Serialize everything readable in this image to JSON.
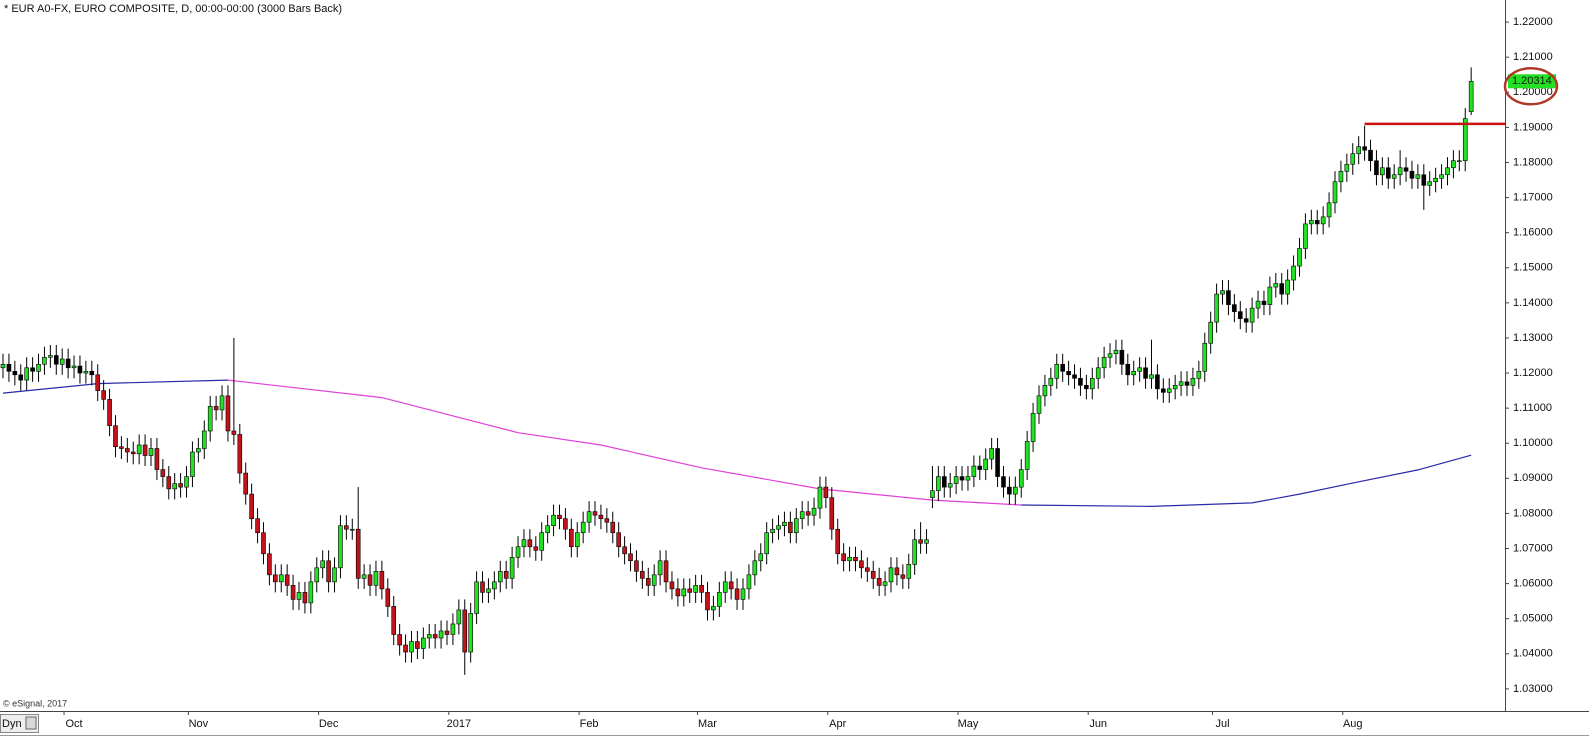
{
  "chart_data": {
    "type": "candlestick",
    "title": "* EUR A0-FX, EURO COMPOSITE, D, 00:00-00:00 (3000 Bars Back)",
    "copyright": "© eSignal, 2017",
    "controls_label": "Dyn",
    "up_color": "#22e022",
    "down_color": "#c0141a",
    "neutral_color": "#000000",
    "ylim": [
      1.0237,
      1.2263
    ],
    "yticks": [
      {
        "value": 1.22,
        "label": "1.22000"
      },
      {
        "value": 1.21,
        "label": "1.21000"
      },
      {
        "value": 1.2,
        "label": "1.20000"
      },
      {
        "value": 1.19,
        "label": "1.19000"
      },
      {
        "value": 1.18,
        "label": "1.18000"
      },
      {
        "value": 1.17,
        "label": "1.17000"
      },
      {
        "value": 1.16,
        "label": "1.16000"
      },
      {
        "value": 1.15,
        "label": "1.15000"
      },
      {
        "value": 1.14,
        "label": "1.14000"
      },
      {
        "value": 1.13,
        "label": "1.13000"
      },
      {
        "value": 1.12,
        "label": "1.12000"
      },
      {
        "value": 1.11,
        "label": "1.11000"
      },
      {
        "value": 1.1,
        "label": "1.10000"
      },
      {
        "value": 1.09,
        "label": "1.09000"
      },
      {
        "value": 1.08,
        "label": "1.08000"
      },
      {
        "value": 1.07,
        "label": "1.07000"
      },
      {
        "value": 1.06,
        "label": "1.06000"
      },
      {
        "value": 1.05,
        "label": "1.05000"
      },
      {
        "value": 1.04,
        "label": "1.04000"
      },
      {
        "value": 1.03,
        "label": "1.03000"
      }
    ],
    "last_price": {
      "value": 1.20314,
      "label": "1.20314",
      "color": "#22e022"
    },
    "hline": {
      "value": 1.191,
      "color": "#cc1111",
      "from": 230
    },
    "categories": [
      null,
      null,
      null,
      null,
      null,
      null,
      null,
      null,
      null,
      null,
      null,
      null,
      "Oct",
      null,
      null,
      null,
      null,
      null,
      null,
      null,
      null,
      null,
      null,
      null,
      null,
      null,
      null,
      null,
      null,
      null,
      null,
      null,
      null,
      "Nov",
      null,
      null,
      null,
      null,
      null,
      null,
      null,
      null,
      null,
      null,
      null,
      null,
      null,
      null,
      null,
      null,
      null,
      null,
      null,
      null,
      null,
      "Dec",
      null,
      null,
      null,
      null,
      null,
      null,
      null,
      null,
      null,
      null,
      null,
      null,
      null,
      null,
      null,
      null,
      null,
      null,
      null,
      null,
      null,
      "2017",
      null,
      null,
      null,
      null,
      null,
      null,
      null,
      null,
      null,
      null,
      null,
      null,
      null,
      null,
      null,
      null,
      null,
      null,
      null,
      null,
      null,
      "Feb",
      null,
      null,
      null,
      null,
      null,
      null,
      null,
      null,
      null,
      null,
      null,
      null,
      null,
      null,
      null,
      null,
      null,
      null,
      null,
      "Mar",
      null,
      null,
      null,
      null,
      null,
      null,
      null,
      null,
      null,
      null,
      null,
      null,
      null,
      null,
      null,
      null,
      null,
      null,
      null,
      null,
      null,
      "Apr",
      null,
      null,
      null,
      null,
      null,
      null,
      null,
      null,
      null,
      null,
      null,
      null,
      null,
      null,
      null,
      null,
      null,
      null,
      null,
      null,
      null,
      "May",
      null,
      null,
      null,
      null,
      null,
      null,
      null,
      null,
      null,
      null,
      null,
      null,
      null,
      null,
      null,
      null,
      null,
      null,
      null,
      null,
      null,
      "Jun",
      null,
      null,
      null,
      null,
      null,
      null,
      null,
      null,
      null,
      null,
      null,
      null,
      null,
      null,
      null,
      null,
      null,
      null,
      null,
      null,
      "Jul",
      null,
      null,
      null,
      null,
      null,
      null,
      null,
      null,
      null,
      null,
      null,
      null,
      null,
      null,
      null,
      null,
      null,
      null,
      null,
      null,
      null,
      "Aug",
      null,
      null,
      null,
      null,
      null,
      null,
      null,
      null,
      null,
      null,
      null,
      null,
      null,
      null,
      null,
      null,
      null,
      null,
      null,
      null
    ],
    "open": [
      1.1215,
      1.1225,
      1.1205,
      1.1195,
      1.118,
      1.1215,
      1.1205,
      1.1225,
      1.1245,
      1.125,
      1.1225,
      1.124,
      1.1215,
      1.122,
      1.12,
      1.1205,
      1.1195,
      1.115,
      1.1125,
      1.105,
      1.099,
      1.0985,
      1.0975,
      1.097,
      1.0995,
      1.0965,
      1.0985,
      1.0925,
      1.0905,
      1.087,
      1.0885,
      1.0875,
      1.0905,
      1.0975,
      1.0985,
      1.1035,
      1.1105,
      1.1095,
      1.1135,
      1.1035,
      1.1025,
      1.0915,
      1.0855,
      1.0785,
      1.0745,
      1.0685,
      1.0625,
      1.0605,
      1.0625,
      1.0595,
      1.0555,
      1.0575,
      1.0545,
      1.0605,
      1.0645,
      1.0665,
      1.0605,
      1.0645,
      1.0765,
      1.0755,
      1.0755,
      1.0615,
      1.0625,
      1.0595,
      1.0635,
      1.0585,
      1.0535,
      1.0455,
      1.0425,
      1.0405,
      1.0435,
      1.0415,
      1.0445,
      1.0455,
      1.0445,
      1.0465,
      1.0455,
      1.0485,
      1.0525,
      1.0405,
      1.0515,
      1.0605,
      1.0575,
      1.0585,
      1.0605,
      1.0635,
      1.0615,
      1.0675,
      1.0705,
      1.0725,
      1.0705,
      1.0695,
      1.0745,
      1.0765,
      1.0795,
      1.0785,
      1.0755,
      1.0705,
      1.0745,
      1.0775,
      1.0805,
      1.0795,
      1.0785,
      1.0775,
      1.0745,
      1.0705,
      1.0685,
      1.0665,
      1.0635,
      1.0615,
      1.0595,
      1.0625,
      1.0665,
      1.0605,
      1.0585,
      1.0565,
      1.0585,
      1.0575,
      1.0595,
      1.0575,
      1.0525,
      1.0535,
      1.0575,
      1.0605,
      1.0585,
      1.0555,
      1.0585,
      1.0625,
      1.0665,
      1.0685,
      1.0745,
      1.0755,
      1.0765,
      1.0775,
      1.0745,
      1.0785,
      1.0805,
      1.0795,
      1.0815,
      1.0875,
      1.0845,
      1.0755,
      1.0685,
      1.0665,
      1.0675,
      1.0665,
      1.0645,
      1.0635,
      1.0615,
      1.0595,
      1.0605,
      1.0645,
      1.0625,
      1.0615,
      1.0655,
      1.0725,
      1.0715,
      1.0845,
      1.0865,
      1.0905,
      1.0875,
      1.0885,
      1.0905,
      1.0895,
      1.0905,
      1.0935,
      1.0925,
      1.0955,
      1.0985,
      1.0905,
      1.0875,
      1.0855,
      1.0875,
      1.0925,
      1.1005,
      1.1085,
      1.1135,
      1.1165,
      1.1185,
      1.1225,
      1.1205,
      1.1195,
      1.1185,
      1.1165,
      1.1155,
      1.1185,
      1.1215,
      1.1245,
      1.1255,
      1.1265,
      1.1225,
      1.1195,
      1.1205,
      1.1215,
      1.1185,
      1.1195,
      1.1155,
      1.1145,
      1.1155,
      1.1165,
      1.1175,
      1.1165,
      1.1185,
      1.1205,
      1.1285,
      1.1345,
      1.1425,
      1.1435,
      1.1395,
      1.1375,
      1.1355,
      1.1345,
      1.1385,
      1.1405,
      1.1395,
      1.1445,
      1.1455,
      1.1425,
      1.1465,
      1.1505,
      1.1555,
      1.1625,
      1.1635,
      1.1625,
      1.1645,
      1.1685,
      1.1745,
      1.1775,
      1.1795,
      1.1825,
      1.1845,
      1.1835,
      1.1805,
      1.1765,
      1.1785,
      1.1755,
      1.1765,
      1.1785,
      1.1775,
      1.1755,
      1.1765,
      1.1735,
      1.1745,
      1.1755,
      1.1765,
      1.1785,
      1.1805,
      1.1805,
      1.1945
    ],
    "high": [
      1.1255,
      1.1255,
      1.1235,
      1.1225,
      1.1245,
      1.1245,
      1.1255,
      1.1275,
      1.128,
      1.128,
      1.127,
      1.127,
      1.125,
      1.125,
      1.1235,
      1.1235,
      1.1225,
      1.118,
      1.1155,
      1.108,
      1.102,
      1.1015,
      1.1005,
      1.1025,
      1.1025,
      1.1015,
      1.1015,
      1.0955,
      1.0935,
      1.0915,
      1.0915,
      1.0935,
      1.1005,
      1.1015,
      1.1065,
      1.1135,
      1.1135,
      1.1165,
      1.1165,
      1.13,
      1.1055,
      1.0945,
      1.0885,
      1.0815,
      1.0775,
      1.0715,
      1.0655,
      1.0655,
      1.0655,
      1.0625,
      1.0605,
      1.0605,
      1.0635,
      1.0675,
      1.0695,
      1.0695,
      1.0675,
      1.0795,
      1.0795,
      1.0785,
      1.0875,
      1.0655,
      1.0655,
      1.0665,
      1.0665,
      1.0615,
      1.0565,
      1.0485,
      1.0455,
      1.0465,
      1.0465,
      1.0475,
      1.0485,
      1.0485,
      1.0495,
      1.0495,
      1.0515,
      1.0555,
      1.0555,
      1.0545,
      1.0635,
      1.0635,
      1.0615,
      1.0635,
      1.0665,
      1.0665,
      1.0705,
      1.0735,
      1.0755,
      1.0755,
      1.0735,
      1.0775,
      1.0795,
      1.0825,
      1.0825,
      1.0815,
      1.0785,
      1.0775,
      1.0805,
      1.0835,
      1.0835,
      1.0825,
      1.0815,
      1.0805,
      1.0775,
      1.0735,
      1.0715,
      1.0695,
      1.0665,
      1.0645,
      1.0655,
      1.0695,
      1.0695,
      1.0635,
      1.0615,
      1.0615,
      1.0615,
      1.0625,
      1.0625,
      1.0605,
      1.0565,
      1.0605,
      1.0635,
      1.0635,
      1.0615,
      1.0615,
      1.0655,
      1.0695,
      1.0715,
      1.0775,
      1.0785,
      1.0795,
      1.0805,
      1.0805,
      1.0815,
      1.0835,
      1.0835,
      1.0845,
      1.0905,
      1.0905,
      1.0875,
      1.0785,
      1.0715,
      1.0705,
      1.0705,
      1.0695,
      1.0675,
      1.0665,
      1.0645,
      1.0635,
      1.0675,
      1.0675,
      1.0655,
      1.0685,
      1.0755,
      1.0775,
      1.0755,
      1.0935,
      1.0935,
      1.0935,
      1.0915,
      1.0935,
      1.0935,
      1.0935,
      1.0965,
      1.0965,
      1.0985,
      1.1015,
      1.1015,
      1.0935,
      1.0905,
      1.0905,
      1.0955,
      1.1035,
      1.1115,
      1.1165,
      1.1195,
      1.1215,
      1.1255,
      1.1255,
      1.1235,
      1.1225,
      1.1215,
      1.1195,
      1.1215,
      1.1245,
      1.1275,
      1.1285,
      1.1295,
      1.1295,
      1.1255,
      1.1235,
      1.1245,
      1.1245,
      1.1295,
      1.1225,
      1.1185,
      1.1185,
      1.1195,
      1.1205,
      1.1205,
      1.1215,
      1.1235,
      1.1315,
      1.1375,
      1.1455,
      1.1465,
      1.1465,
      1.1425,
      1.1405,
      1.1385,
      1.1415,
      1.1435,
      1.1435,
      1.1475,
      1.1485,
      1.1485,
      1.1495,
      1.1535,
      1.1585,
      1.1655,
      1.1665,
      1.1665,
      1.1675,
      1.1715,
      1.1775,
      1.1805,
      1.1825,
      1.1855,
      1.1875,
      1.1905,
      1.1865,
      1.1835,
      1.1815,
      1.1815,
      1.1795,
      1.1835,
      1.1815,
      1.1805,
      1.1795,
      1.1795,
      1.1775,
      1.1785,
      1.1795,
      1.1815,
      1.1835,
      1.1835,
      1.1955,
      1.2071
    ],
    "low": [
      1.1185,
      1.1175,
      1.1165,
      1.115,
      1.115,
      1.1175,
      1.1175,
      1.1195,
      1.1215,
      1.1195,
      1.1195,
      1.1185,
      1.1185,
      1.117,
      1.117,
      1.1165,
      1.112,
      1.1095,
      1.102,
      1.096,
      1.0955,
      1.0945,
      1.094,
      1.094,
      1.0935,
      1.0935,
      1.0895,
      1.0875,
      1.084,
      1.084,
      1.0845,
      1.0845,
      1.0875,
      1.0945,
      1.0955,
      1.1005,
      1.1065,
      1.1065,
      1.1005,
      1.0995,
      1.0885,
      1.0825,
      1.0755,
      1.0715,
      1.0655,
      1.0595,
      1.0575,
      1.0575,
      1.0565,
      1.0525,
      1.0525,
      1.0515,
      1.0515,
      1.0575,
      1.0615,
      1.0575,
      1.0575,
      1.0615,
      1.0725,
      1.0725,
      1.0585,
      1.0585,
      1.0565,
      1.0565,
      1.0555,
      1.0505,
      1.0425,
      1.0395,
      1.0375,
      1.0375,
      1.0385,
      1.0385,
      1.0415,
      1.0415,
      1.0415,
      1.0425,
      1.0425,
      1.0455,
      1.034,
      1.0375,
      1.0485,
      1.0545,
      1.0545,
      1.0555,
      1.0575,
      1.0585,
      1.0585,
      1.0645,
      1.0675,
      1.0675,
      1.0665,
      1.0665,
      1.0715,
      1.0735,
      1.0755,
      1.0725,
      1.0675,
      1.0675,
      1.0715,
      1.0745,
      1.0765,
      1.0755,
      1.0745,
      1.0715,
      1.0675,
      1.0655,
      1.0635,
      1.0605,
      1.0585,
      1.0565,
      1.0565,
      1.0595,
      1.0575,
      1.0555,
      1.0535,
      1.0535,
      1.0545,
      1.0545,
      1.0545,
      1.0495,
      1.0495,
      1.0505,
      1.0545,
      1.0555,
      1.0525,
      1.0525,
      1.0555,
      1.0595,
      1.0635,
      1.0655,
      1.0715,
      1.0725,
      1.0735,
      1.0715,
      1.0715,
      1.0755,
      1.0765,
      1.0765,
      1.0785,
      1.0815,
      1.0725,
      1.0655,
      1.0635,
      1.0635,
      1.0635,
      1.0615,
      1.0605,
      1.0585,
      1.0565,
      1.0565,
      1.0575,
      1.0595,
      1.0585,
      1.0585,
      1.0625,
      1.0685,
      1.0685,
      1.0815,
      1.0835,
      1.0845,
      1.0845,
      1.0855,
      1.0865,
      1.0865,
      1.0875,
      1.0895,
      1.0895,
      1.0925,
      1.0875,
      1.0845,
      1.0825,
      1.0825,
      1.0845,
      1.0895,
      1.0975,
      1.1055,
      1.1105,
      1.1135,
      1.1155,
      1.1175,
      1.1165,
      1.1155,
      1.1135,
      1.1125,
      1.1125,
      1.1155,
      1.1185,
      1.1215,
      1.1225,
      1.1195,
      1.1165,
      1.1165,
      1.1175,
      1.1155,
      1.1155,
      1.1125,
      1.1115,
      1.1115,
      1.1125,
      1.1135,
      1.1135,
      1.1135,
      1.1155,
      1.1175,
      1.1255,
      1.1315,
      1.1395,
      1.1365,
      1.1345,
      1.1325,
      1.1315,
      1.1315,
      1.1355,
      1.1365,
      1.1365,
      1.1415,
      1.1395,
      1.1395,
      1.1435,
      1.1475,
      1.1525,
      1.1595,
      1.1595,
      1.1595,
      1.1615,
      1.1655,
      1.1715,
      1.1745,
      1.1765,
      1.1795,
      1.1805,
      1.1775,
      1.1735,
      1.1735,
      1.1725,
      1.1725,
      1.1735,
      1.1745,
      1.1725,
      1.1725,
      1.1665,
      1.1705,
      1.1715,
      1.1725,
      1.1735,
      1.1755,
      1.1775,
      1.1775,
      1.1935
    ],
    "close": [
      1.1225,
      1.1205,
      1.1195,
      1.118,
      1.1215,
      1.1205,
      1.1225,
      1.1245,
      1.125,
      1.1225,
      1.124,
      1.1215,
      1.122,
      1.12,
      1.1205,
      1.1195,
      1.115,
      1.1125,
      1.105,
      1.099,
      1.0985,
      1.0975,
      1.097,
      1.0995,
      1.0965,
      1.0985,
      1.0925,
      1.0905,
      1.087,
      1.0885,
      1.0875,
      1.0905,
      1.0975,
      1.0985,
      1.1035,
      1.1105,
      1.1095,
      1.1135,
      1.1035,
      1.1025,
      1.0915,
      1.0855,
      1.0785,
      1.0745,
      1.0685,
      1.0625,
      1.0605,
      1.0625,
      1.0595,
      1.0555,
      1.0575,
      1.0545,
      1.0605,
      1.0645,
      1.0665,
      1.0605,
      1.0645,
      1.0765,
      1.0755,
      1.0755,
      1.0615,
      1.0625,
      1.0595,
      1.0635,
      1.0585,
      1.0535,
      1.0455,
      1.0425,
      1.0405,
      1.0435,
      1.0415,
      1.0445,
      1.0455,
      1.0445,
      1.0465,
      1.0455,
      1.0485,
      1.0525,
      1.0405,
      1.0515,
      1.0605,
      1.0575,
      1.0585,
      1.0605,
      1.0635,
      1.0615,
      1.0675,
      1.0705,
      1.0725,
      1.0705,
      1.0695,
      1.0745,
      1.0765,
      1.0795,
      1.0785,
      1.0755,
      1.0705,
      1.0745,
      1.0775,
      1.0805,
      1.0795,
      1.0785,
      1.0775,
      1.0745,
      1.0705,
      1.0685,
      1.0665,
      1.0635,
      1.0615,
      1.0595,
      1.0625,
      1.0665,
      1.0605,
      1.0585,
      1.0565,
      1.0585,
      1.0575,
      1.0595,
      1.0575,
      1.0525,
      1.0535,
      1.0575,
      1.0605,
      1.0585,
      1.0555,
      1.0585,
      1.0625,
      1.0665,
      1.0685,
      1.0745,
      1.0755,
      1.0765,
      1.0775,
      1.0745,
      1.0785,
      1.0805,
      1.0795,
      1.0815,
      1.0875,
      1.0845,
      1.0755,
      1.0685,
      1.0665,
      1.0675,
      1.0665,
      1.0645,
      1.0635,
      1.0615,
      1.0595,
      1.0605,
      1.0645,
      1.0625,
      1.0615,
      1.0655,
      1.0725,
      1.0715,
      1.0725,
      1.0865,
      1.0905,
      1.0875,
      1.0885,
      1.0905,
      1.0895,
      1.0905,
      1.0935,
      1.0925,
      1.0955,
      1.0985,
      1.0905,
      1.0875,
      1.0855,
      1.0875,
      1.0925,
      1.1005,
      1.1085,
      1.1135,
      1.1165,
      1.1185,
      1.1225,
      1.1205,
      1.1195,
      1.1185,
      1.1165,
      1.1155,
      1.1185,
      1.1215,
      1.1245,
      1.1255,
      1.1265,
      1.1225,
      1.1195,
      1.1205,
      1.1215,
      1.1185,
      1.1195,
      1.1155,
      1.1145,
      1.1155,
      1.1165,
      1.1175,
      1.1165,
      1.1185,
      1.1205,
      1.1285,
      1.1345,
      1.1425,
      1.1435,
      1.1395,
      1.1375,
      1.1355,
      1.1345,
      1.1385,
      1.1405,
      1.1395,
      1.1445,
      1.1455,
      1.1425,
      1.1465,
      1.1505,
      1.1555,
      1.1625,
      1.1635,
      1.1625,
      1.1645,
      1.1685,
      1.1745,
      1.1775,
      1.1795,
      1.1825,
      1.1845,
      1.1835,
      1.1805,
      1.1765,
      1.1785,
      1.1755,
      1.1765,
      1.1785,
      1.1775,
      1.1755,
      1.1765,
      1.1735,
      1.1745,
      1.1755,
      1.1765,
      1.1785,
      1.1805,
      1.1805,
      1.1925,
      1.2031
    ],
    "overlays": [
      {
        "color": "#2a2aa8",
        "x": [
          0,
          16,
          38
        ],
        "values": [
          1.1143,
          1.117,
          1.118
        ]
      },
      {
        "color": "#e040d8",
        "x": [
          38,
          64,
          87,
          101,
          118,
          138,
          157,
          172
        ],
        "values": [
          1.118,
          1.113,
          1.103,
          1.0995,
          1.093,
          1.087,
          1.0838,
          1.0824
        ]
      },
      {
        "color": "#2a2aa8",
        "x": [
          172,
          194,
          211,
          219,
          229,
          239,
          248
        ],
        "values": [
          1.0824,
          1.082,
          1.083,
          1.0855,
          1.089,
          1.0924,
          1.0966
        ]
      }
    ]
  }
}
